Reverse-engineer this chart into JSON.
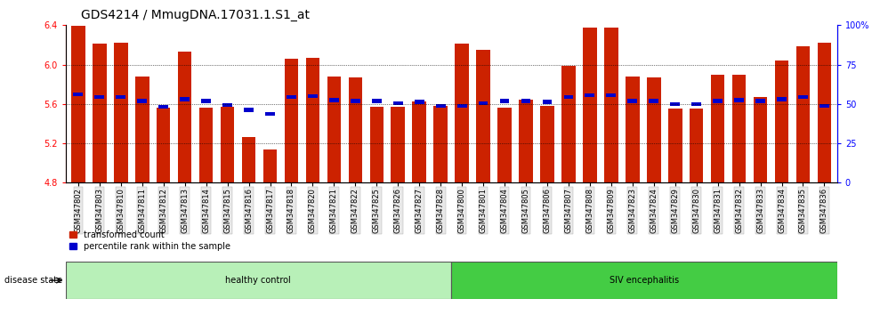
{
  "title": "GDS4214 / MmugDNA.17031.1.S1_at",
  "ylim": [
    4.8,
    6.4
  ],
  "yticks": [
    4.8,
    5.2,
    5.6,
    6.0,
    6.4
  ],
  "right_yticks": [
    0,
    25,
    50,
    75,
    100
  ],
  "right_ylim": [
    0,
    100
  ],
  "bar_bottom": 4.8,
  "bar_color": "#cc2200",
  "dot_color": "#0000cc",
  "categories": [
    "GSM347802",
    "GSM347803",
    "GSM347810",
    "GSM347811",
    "GSM347812",
    "GSM347813",
    "GSM347814",
    "GSM347815",
    "GSM347816",
    "GSM347817",
    "GSM347818",
    "GSM347820",
    "GSM347821",
    "GSM347822",
    "GSM347825",
    "GSM347826",
    "GSM347827",
    "GSM347828",
    "GSM347800",
    "GSM347801",
    "GSM347804",
    "GSM347805",
    "GSM347806",
    "GSM347807",
    "GSM347808",
    "GSM347809",
    "GSM347823",
    "GSM347824",
    "GSM347829",
    "GSM347830",
    "GSM347831",
    "GSM347832",
    "GSM347833",
    "GSM347834",
    "GSM347835",
    "GSM347836"
  ],
  "bar_values": [
    6.39,
    6.21,
    6.22,
    5.88,
    5.56,
    6.13,
    5.56,
    5.57,
    5.26,
    5.14,
    6.06,
    6.07,
    5.88,
    5.87,
    5.57,
    5.57,
    5.63,
    5.58,
    6.21,
    6.15,
    5.56,
    5.64,
    5.58,
    5.99,
    6.38,
    6.38,
    5.88,
    5.87,
    5.55,
    5.55,
    5.9,
    5.9,
    5.67,
    6.04,
    6.19,
    6.22
  ],
  "percentile_values": [
    5.7,
    5.67,
    5.67,
    5.63,
    5.57,
    5.65,
    5.63,
    5.59,
    5.54,
    5.5,
    5.67,
    5.68,
    5.64,
    5.63,
    5.63,
    5.61,
    5.62,
    5.58,
    5.58,
    5.61,
    5.63,
    5.63,
    5.62,
    5.67,
    5.69,
    5.69,
    5.63,
    5.63,
    5.6,
    5.6,
    5.63,
    5.64,
    5.63,
    5.65,
    5.67,
    5.58
  ],
  "healthy_control_count": 18,
  "healthy_color": "#b8f0b8",
  "siv_color": "#44cc44",
  "healthy_label": "healthy control",
  "siv_label": "SIV encephalitis",
  "disease_state_label": "disease state",
  "legend_red_label": "transformed count",
  "legend_blue_label": "percentile rank within the sample",
  "bg_color": "#ffffff",
  "ax_bg_color": "#ffffff",
  "title_fontsize": 10,
  "tick_fontsize": 7,
  "xtick_fontsize": 6,
  "label_fontsize": 8
}
